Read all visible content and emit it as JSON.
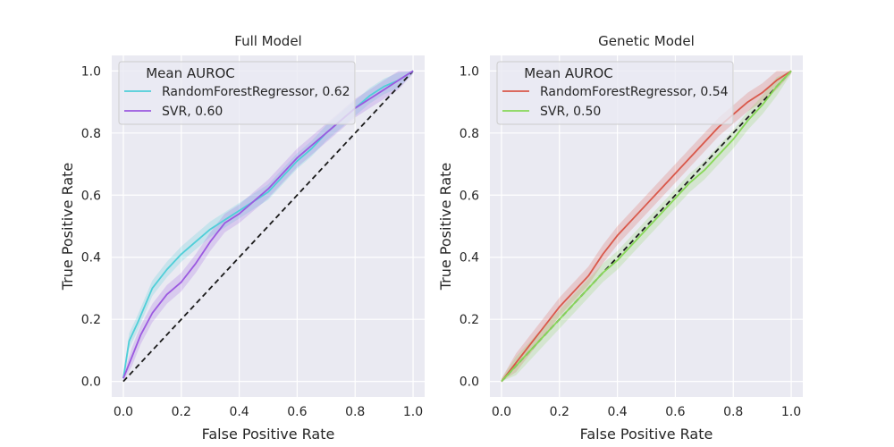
{
  "chart_data": [
    {
      "type": "line",
      "title": "Full Model",
      "xlabel": "False Positive Rate",
      "ylabel": "True Positive Rate",
      "xlim": [
        -0.04,
        1.04
      ],
      "ylim": [
        -0.05,
        1.05
      ],
      "xticks": [
        "0.0",
        "0.2",
        "0.4",
        "0.6",
        "0.8",
        "1.0"
      ],
      "yticks": [
        "0.0",
        "0.2",
        "0.4",
        "0.6",
        "0.8",
        "1.0"
      ],
      "grid": true,
      "legend": {
        "title": "Mean AUROC",
        "placement": "upper-left"
      },
      "diagonal": {
        "x": [
          0,
          1
        ],
        "y": [
          0,
          1
        ],
        "color": "#1a1a1a",
        "style": "dashed"
      },
      "series": [
        {
          "name": "RandomForestRegressor, 0.62",
          "color": "#4fcfd8",
          "x": [
            0,
            0.02,
            0.05,
            0.1,
            0.15,
            0.2,
            0.25,
            0.3,
            0.35,
            0.4,
            0.45,
            0.5,
            0.55,
            0.6,
            0.65,
            0.7,
            0.75,
            0.8,
            0.85,
            0.9,
            0.95,
            1.0
          ],
          "y": [
            0.01,
            0.13,
            0.19,
            0.3,
            0.36,
            0.41,
            0.45,
            0.49,
            0.52,
            0.55,
            0.58,
            0.61,
            0.66,
            0.71,
            0.75,
            0.8,
            0.84,
            0.88,
            0.92,
            0.95,
            0.97,
            1.0
          ],
          "band": 0.025
        },
        {
          "name": "SVR, 0.60",
          "color": "#9b59e0",
          "x": [
            0,
            0.03,
            0.06,
            0.1,
            0.15,
            0.2,
            0.25,
            0.3,
            0.35,
            0.4,
            0.45,
            0.5,
            0.55,
            0.6,
            0.65,
            0.7,
            0.75,
            0.8,
            0.85,
            0.9,
            0.95,
            1.0
          ],
          "y": [
            0.01,
            0.08,
            0.15,
            0.22,
            0.28,
            0.32,
            0.38,
            0.45,
            0.51,
            0.54,
            0.58,
            0.62,
            0.67,
            0.72,
            0.76,
            0.8,
            0.84,
            0.88,
            0.91,
            0.94,
            0.97,
            1.0
          ],
          "band": 0.03
        }
      ]
    },
    {
      "type": "line",
      "title": "Genetic Model",
      "xlabel": "False Positive Rate",
      "ylabel": "True Positive Rate",
      "xlim": [
        -0.04,
        1.04
      ],
      "ylim": [
        -0.05,
        1.05
      ],
      "xticks": [
        "0.0",
        "0.2",
        "0.4",
        "0.6",
        "0.8",
        "1.0"
      ],
      "yticks": [
        "0.0",
        "0.2",
        "0.4",
        "0.6",
        "0.8",
        "1.0"
      ],
      "grid": true,
      "legend": {
        "title": "Mean AUROC",
        "placement": "upper-left"
      },
      "diagonal": {
        "x": [
          0,
          1
        ],
        "y": [
          0,
          1
        ],
        "color": "#1a1a1a",
        "style": "dashed"
      },
      "series": [
        {
          "name": "RandomForestRegressor, 0.54",
          "color": "#d9584a",
          "x": [
            0,
            0.05,
            0.1,
            0.15,
            0.2,
            0.25,
            0.3,
            0.35,
            0.4,
            0.45,
            0.5,
            0.55,
            0.6,
            0.65,
            0.7,
            0.75,
            0.8,
            0.85,
            0.9,
            0.95,
            1.0
          ],
          "y": [
            0.0,
            0.06,
            0.12,
            0.18,
            0.24,
            0.29,
            0.34,
            0.41,
            0.47,
            0.52,
            0.57,
            0.62,
            0.67,
            0.72,
            0.77,
            0.82,
            0.86,
            0.9,
            0.93,
            0.97,
            1.0
          ],
          "band": 0.03
        },
        {
          "name": "SVR, 0.50",
          "color": "#88d858",
          "x": [
            0,
            0.05,
            0.1,
            0.15,
            0.2,
            0.25,
            0.3,
            0.35,
            0.4,
            0.45,
            0.5,
            0.55,
            0.6,
            0.65,
            0.7,
            0.75,
            0.8,
            0.85,
            0.9,
            0.95,
            1.0
          ],
          "y": [
            0.0,
            0.05,
            0.1,
            0.15,
            0.2,
            0.25,
            0.3,
            0.35,
            0.39,
            0.44,
            0.49,
            0.54,
            0.59,
            0.64,
            0.68,
            0.73,
            0.78,
            0.84,
            0.89,
            0.95,
            1.0
          ],
          "band": 0.03
        }
      ]
    }
  ]
}
